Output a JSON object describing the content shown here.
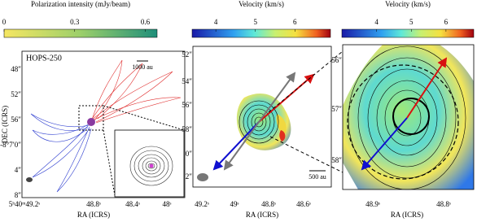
{
  "panels": [
    {
      "colorbar": {
        "label": "Polarization intensity (mJy/beam)",
        "lim": [
          0,
          0.65
        ],
        "ticks": [
          0,
          0.3,
          0.6
        ]
      },
      "source": "HOPS-250",
      "scalebar": "1000 au",
      "xlabel": "RA (ICRS)",
      "ylabel": "DEC (ICRS)",
      "yticks": [
        "48″",
        "52″",
        "56″",
        "-8°7′0″",
        "4″",
        "8″"
      ],
      "xticks": [
        "5ʰ40ᵐ49.2ˢ",
        "48.8ˢ"
      ],
      "inset_xticks": [
        "48.4ˢ",
        "48ˢ"
      ]
    },
    {
      "colorbar": {
        "label": "Velocity (km/s)",
        "lim": [
          3.4,
          6.9
        ],
        "ticks": [
          4,
          5,
          6
        ]
      },
      "scalebar": "500 au",
      "xlabel": "RA (ICRS)",
      "yticks": [
        "52″",
        "54″",
        "56″",
        "58″",
        "0″",
        "2″"
      ],
      "xticks": [
        "49.2ˢ",
        "49ˢ",
        "48.8ˢ",
        "48.6ˢ"
      ]
    },
    {
      "colorbar": {
        "label": "Velocity (km/s)",
        "lim": [
          3.0,
          6.8
        ],
        "ticks": [
          4,
          5,
          6
        ]
      },
      "xlabel": "RA (ICRS)",
      "yticks": [
        "56″",
        "57″",
        "58″"
      ],
      "xticks": [
        "48.9ˢ",
        "48.8ˢ"
      ]
    }
  ]
}
